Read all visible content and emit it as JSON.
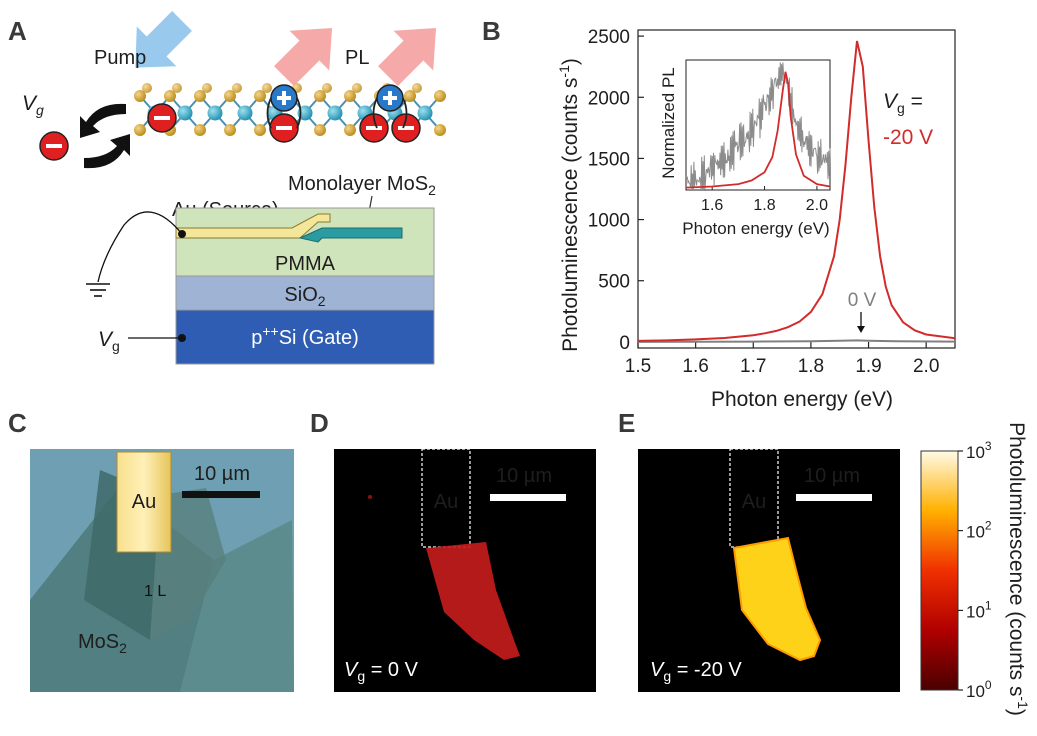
{
  "panels": {
    "a": {
      "letter": "A",
      "pump": "Pump",
      "pl": "PL",
      "vg_var": "V",
      "vg_sub": "g",
      "monolayer": "Monolayer MoS",
      "monolayer_sub": "2",
      "au_source": "Au (Source)",
      "pmma": "PMMA",
      "sio2": "SiO",
      "sio2_sub": "2",
      "gate_pre": "p",
      "gate_sup": "++",
      "gate_post": "Si (Gate)",
      "vg_bottom": "V",
      "vg_bottom_sub": "g"
    },
    "b": {
      "letter": "B",
      "vg_eq": "V",
      "vg_eq_sub": "g",
      "vg_eq_suffix": " =",
      "vg_value": "-20 V",
      "zero_label": "0 V"
    },
    "c": {
      "letter": "C",
      "au": "Au",
      "scale": "10 µm",
      "one_l": "1 L",
      "mos2": "MoS",
      "mos2_sub": "2"
    },
    "d": {
      "letter": "D",
      "au": "Au",
      "scale": "10 µm",
      "vg_pre": "V",
      "vg_sub": "g",
      "vg_post": " = 0 V"
    },
    "e": {
      "letter": "E",
      "au": "Au",
      "scale": "10 µm",
      "vg_pre": "V",
      "vg_sub": "g",
      "vg_post": " = -20 V"
    },
    "colorbar": {
      "label": "Photoluminescence (counts s",
      "label_sup": "-1",
      "label_close": ")",
      "ticks": [
        {
          "base": "10",
          "exp": "3",
          "level": 1.0
        },
        {
          "base": "10",
          "exp": "2",
          "level": 0.667
        },
        {
          "base": "10",
          "exp": "1",
          "level": 0.333
        },
        {
          "base": "10",
          "exp": "0",
          "level": 0.0
        }
      ]
    }
  },
  "chart_data": [
    {
      "type": "line",
      "panel": "B",
      "xlabel": "Photon energy (eV)",
      "ylabel": "Photoluminescence (counts s",
      "ylabel_sup": "-1",
      "ylabel_close": ")",
      "xlim": [
        1.5,
        2.05
      ],
      "ylim": [
        -50,
        2550
      ],
      "xticks": [
        "1.5",
        "1.6",
        "1.7",
        "1.8",
        "1.9",
        "2.0"
      ],
      "xtick_values": [
        1.5,
        1.6,
        1.7,
        1.8,
        1.9,
        2.0
      ],
      "yticks": [
        "0",
        "500",
        "1000",
        "1500",
        "2000",
        "2500"
      ],
      "ytick_values": [
        0,
        500,
        1000,
        1500,
        2000,
        2500
      ],
      "series": [
        {
          "color": "#d22b2b",
          "x": [
            1.5,
            1.55,
            1.6,
            1.65,
            1.7,
            1.72,
            1.74,
            1.76,
            1.78,
            1.8,
            1.82,
            1.84,
            1.85,
            1.86,
            1.87,
            1.88,
            1.89,
            1.9,
            1.91,
            1.92,
            1.93,
            1.94,
            1.96,
            1.98,
            2.0,
            2.05
          ],
          "y": [
            8,
            12,
            20,
            32,
            55,
            70,
            90,
            120,
            165,
            245,
            390,
            700,
            1000,
            1450,
            2000,
            2460,
            2250,
            1650,
            1100,
            700,
            450,
            300,
            160,
            95,
            60,
            30
          ]
        },
        {
          "color": "#808080",
          "x": [
            1.5,
            1.7,
            1.8,
            1.85,
            1.88,
            1.9,
            1.95,
            2.05
          ],
          "y": [
            0,
            2,
            5,
            9,
            12,
            9,
            5,
            2
          ]
        }
      ],
      "annotations": [
        "V",
        "g",
        " =",
        "-20 V",
        "0 V"
      ]
    },
    {
      "type": "line",
      "panel": "B-inset",
      "xlabel": "Photon energy (eV)",
      "ylabel": "Normalized PL",
      "xlim": [
        1.5,
        2.05
      ],
      "ylim": [
        0,
        1.1
      ],
      "xticks": [
        "1.6",
        "1.8",
        "2.0"
      ],
      "xtick_values": [
        1.6,
        1.8,
        2.0
      ],
      "series": [
        {
          "color": "#d22b2b",
          "x": [
            1.5,
            1.6,
            1.7,
            1.75,
            1.8,
            1.83,
            1.85,
            1.87,
            1.88,
            1.89,
            1.9,
            1.92,
            1.95,
            2.0,
            2.05
          ],
          "y": [
            0.02,
            0.03,
            0.05,
            0.08,
            0.15,
            0.28,
            0.5,
            0.85,
            1.0,
            0.9,
            0.62,
            0.3,
            0.12,
            0.05,
            0.03
          ]
        },
        {
          "color": "#8c8c8c",
          "x": [
            1.5,
            1.55,
            1.6,
            1.65,
            1.7,
            1.75,
            1.78,
            1.8,
            1.82,
            1.84,
            1.86,
            1.87,
            1.88,
            1.9,
            1.92,
            1.95,
            1.98,
            2.0,
            2.05
          ],
          "y": [
            0.05,
            0.1,
            0.18,
            0.27,
            0.38,
            0.5,
            0.6,
            0.7,
            0.8,
            0.9,
            0.97,
            1.0,
            0.95,
            0.75,
            0.55,
            0.42,
            0.35,
            0.3,
            0.25
          ]
        }
      ]
    }
  ]
}
